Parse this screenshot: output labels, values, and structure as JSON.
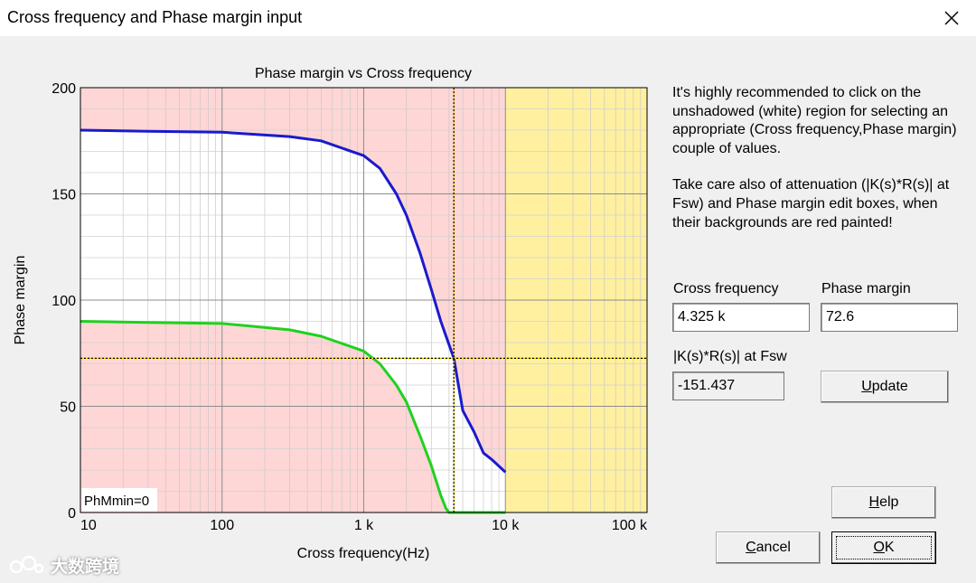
{
  "window": {
    "title": "Cross frequency and Phase margin input",
    "close_glyph": "✕"
  },
  "chart_data": {
    "type": "line",
    "title": "Phase margin vs Cross frequency",
    "xlabel": "Cross frequency(Hz)",
    "ylabel": "Phase margin",
    "xscale": "log",
    "xlim": [
      10,
      100000
    ],
    "ylim": [
      0,
      200
    ],
    "x_tick_labels": [
      {
        "value": 10,
        "label": "10"
      },
      {
        "value": 100,
        "label": "100"
      },
      {
        "value": 1000,
        "label": "1 k"
      },
      {
        "value": 10000,
        "label": "10 k"
      },
      {
        "value": 100000,
        "label": "100 k"
      }
    ],
    "y_tick_labels": [
      {
        "value": 0,
        "label": "0"
      },
      {
        "value": 50,
        "label": "50"
      },
      {
        "value": 100,
        "label": "100"
      },
      {
        "value": 150,
        "label": "150"
      },
      {
        "value": 200,
        "label": "200"
      }
    ],
    "grid": true,
    "annotation": "PhMmin=0",
    "regions": [
      {
        "kind": "shaded-red",
        "color": "#ffd6d6"
      },
      {
        "kind": "shaded-yellow",
        "x_from": 10000,
        "x_to": 100000,
        "color": "#fff0a0"
      }
    ],
    "series": [
      {
        "color": "#1a1acd",
        "x": [
          10,
          30,
          100,
          300,
          500,
          1000,
          1300,
          1700,
          2000,
          2500,
          3000,
          3500,
          4000,
          4325,
          5000,
          6000,
          7000,
          8000,
          10000
        ],
        "y": [
          180,
          179.5,
          179,
          177,
          175,
          168,
          162,
          150,
          140,
          122,
          105,
          90,
          79,
          72.6,
          48,
          38,
          28,
          25,
          19
        ]
      },
      {
        "color": "#1ed21e",
        "x": [
          10,
          30,
          100,
          300,
          500,
          1000,
          1300,
          1700,
          2000,
          2500,
          3000,
          3500,
          3800,
          4000,
          10000
        ],
        "y": [
          90,
          89.5,
          89,
          86,
          83,
          76,
          70,
          60,
          52,
          36,
          22,
          8,
          2,
          0,
          0
        ]
      }
    ],
    "cursor": {
      "x": 4325,
      "y": 72.6,
      "color": "#000000",
      "style": "dotted-yellow"
    }
  },
  "info": {
    "paragraph1": "It's highly recommended to click on the unshadowed (white) region for selecting an appropriate (Cross frequency,Phase margin) couple of values.",
    "paragraph2": "Take care also of attenuation (|K(s)*R(s)| at Fsw) and Phase margin edit boxes, when their backgrounds are red painted!"
  },
  "fields": {
    "cross_label": "Cross frequency",
    "cross_value": "4.325 k",
    "phase_label": "Phase margin",
    "phase_value": "72.6",
    "att_label": "|K(s)*R(s)| at Fsw",
    "att_value": "-151.437"
  },
  "buttons": {
    "update": {
      "accel": "U",
      "rest": "pdate"
    },
    "help": {
      "accel": "H",
      "rest": "elp"
    },
    "cancel": {
      "accel": "C",
      "rest": "ancel"
    },
    "ok": {
      "accel": "O",
      "rest": "K"
    }
  },
  "watermark": "大数跨境"
}
